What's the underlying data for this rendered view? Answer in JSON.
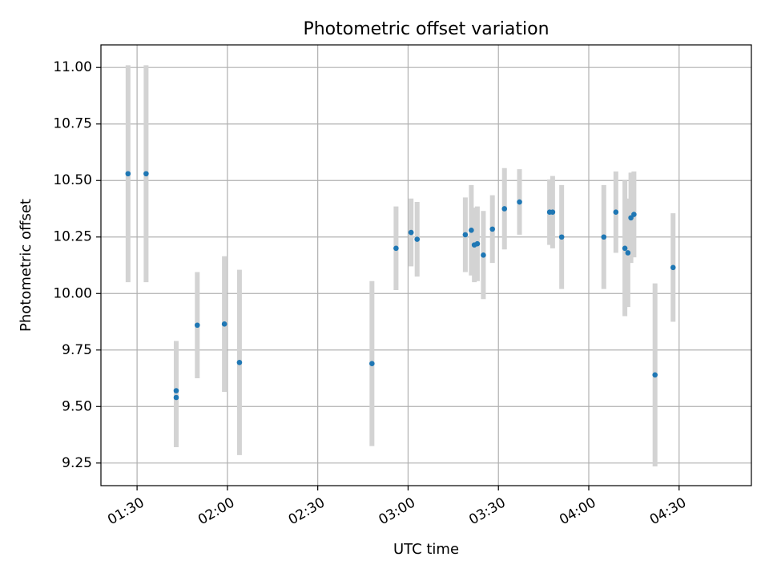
{
  "chart_data": {
    "type": "scatter",
    "title": "Photometric offset variation",
    "xlabel": "UTC time",
    "ylabel": "Photometric offset",
    "x_unit": "minutes after 00:00 UTC",
    "xlim": [
      "01:18",
      "04:54"
    ],
    "ylim": [
      9.15,
      11.1
    ],
    "x_ticks": [
      {
        "t": "01:30",
        "label": "01:30"
      },
      {
        "t": "02:00",
        "label": "02:00"
      },
      {
        "t": "02:30",
        "label": "02:30"
      },
      {
        "t": "03:00",
        "label": "03:00"
      },
      {
        "t": "03:30",
        "label": "03:30"
      },
      {
        "t": "04:00",
        "label": "04:00"
      },
      {
        "t": "04:30",
        "label": "04:30"
      }
    ],
    "y_ticks": [
      {
        "v": 9.25,
        "label": "9.25"
      },
      {
        "v": 9.5,
        "label": "9.50"
      },
      {
        "v": 9.75,
        "label": "9.75"
      },
      {
        "v": 10.0,
        "label": "10.00"
      },
      {
        "v": 10.25,
        "label": "10.25"
      },
      {
        "v": 10.5,
        "label": "10.50"
      },
      {
        "v": 10.75,
        "label": "10.75"
      },
      {
        "v": 11.0,
        "label": "11.00"
      }
    ],
    "grid": true,
    "colors": {
      "marker": "#1f77b4",
      "errorbar": "#d3d3d3",
      "grid": "#b0b0b0"
    },
    "points": [
      {
        "t": "01:27",
        "y": 10.53,
        "err": 0.48
      },
      {
        "t": "01:33",
        "y": 10.53,
        "err": 0.48
      },
      {
        "t": "01:43",
        "y": 9.54,
        "err": 0.22
      },
      {
        "t": "01:43",
        "y": 9.57,
        "err": 0.22
      },
      {
        "t": "01:50",
        "y": 9.86,
        "err": 0.235
      },
      {
        "t": "01:59",
        "y": 9.865,
        "err": 0.3
      },
      {
        "t": "02:04",
        "y": 9.695,
        "err": 0.41
      },
      {
        "t": "02:48",
        "y": 9.69,
        "err": 0.365
      },
      {
        "t": "02:56",
        "y": 10.2,
        "err": 0.185
      },
      {
        "t": "03:01",
        "y": 10.27,
        "err": 0.15
      },
      {
        "t": "03:03",
        "y": 10.24,
        "err": 0.165
      },
      {
        "t": "03:19",
        "y": 10.26,
        "err": 0.165
      },
      {
        "t": "03:21",
        "y": 10.28,
        "err": 0.2
      },
      {
        "t": "03:22",
        "y": 10.215,
        "err": 0.165
      },
      {
        "t": "03:23",
        "y": 10.22,
        "err": 0.165
      },
      {
        "t": "03:25",
        "y": 10.17,
        "err": 0.195
      },
      {
        "t": "03:28",
        "y": 10.285,
        "err": 0.15
      },
      {
        "t": "03:32",
        "y": 10.375,
        "err": 0.18
      },
      {
        "t": "03:37",
        "y": 10.405,
        "err": 0.145
      },
      {
        "t": "03:47",
        "y": 10.36,
        "err": 0.145
      },
      {
        "t": "03:48",
        "y": 10.36,
        "err": 0.16
      },
      {
        "t": "03:51",
        "y": 10.25,
        "err": 0.23
      },
      {
        "t": "04:05",
        "y": 10.25,
        "err": 0.23
      },
      {
        "t": "04:09",
        "y": 10.36,
        "err": 0.18
      },
      {
        "t": "04:12",
        "y": 10.2,
        "err": 0.3
      },
      {
        "t": "04:13",
        "y": 10.18,
        "err": 0.24
      },
      {
        "t": "04:14",
        "y": 10.335,
        "err": 0.2
      },
      {
        "t": "04:15",
        "y": 10.35,
        "err": 0.19
      },
      {
        "t": "04:22",
        "y": 9.64,
        "err": 0.405
      },
      {
        "t": "04:28",
        "y": 10.115,
        "err": 0.24
      }
    ]
  }
}
